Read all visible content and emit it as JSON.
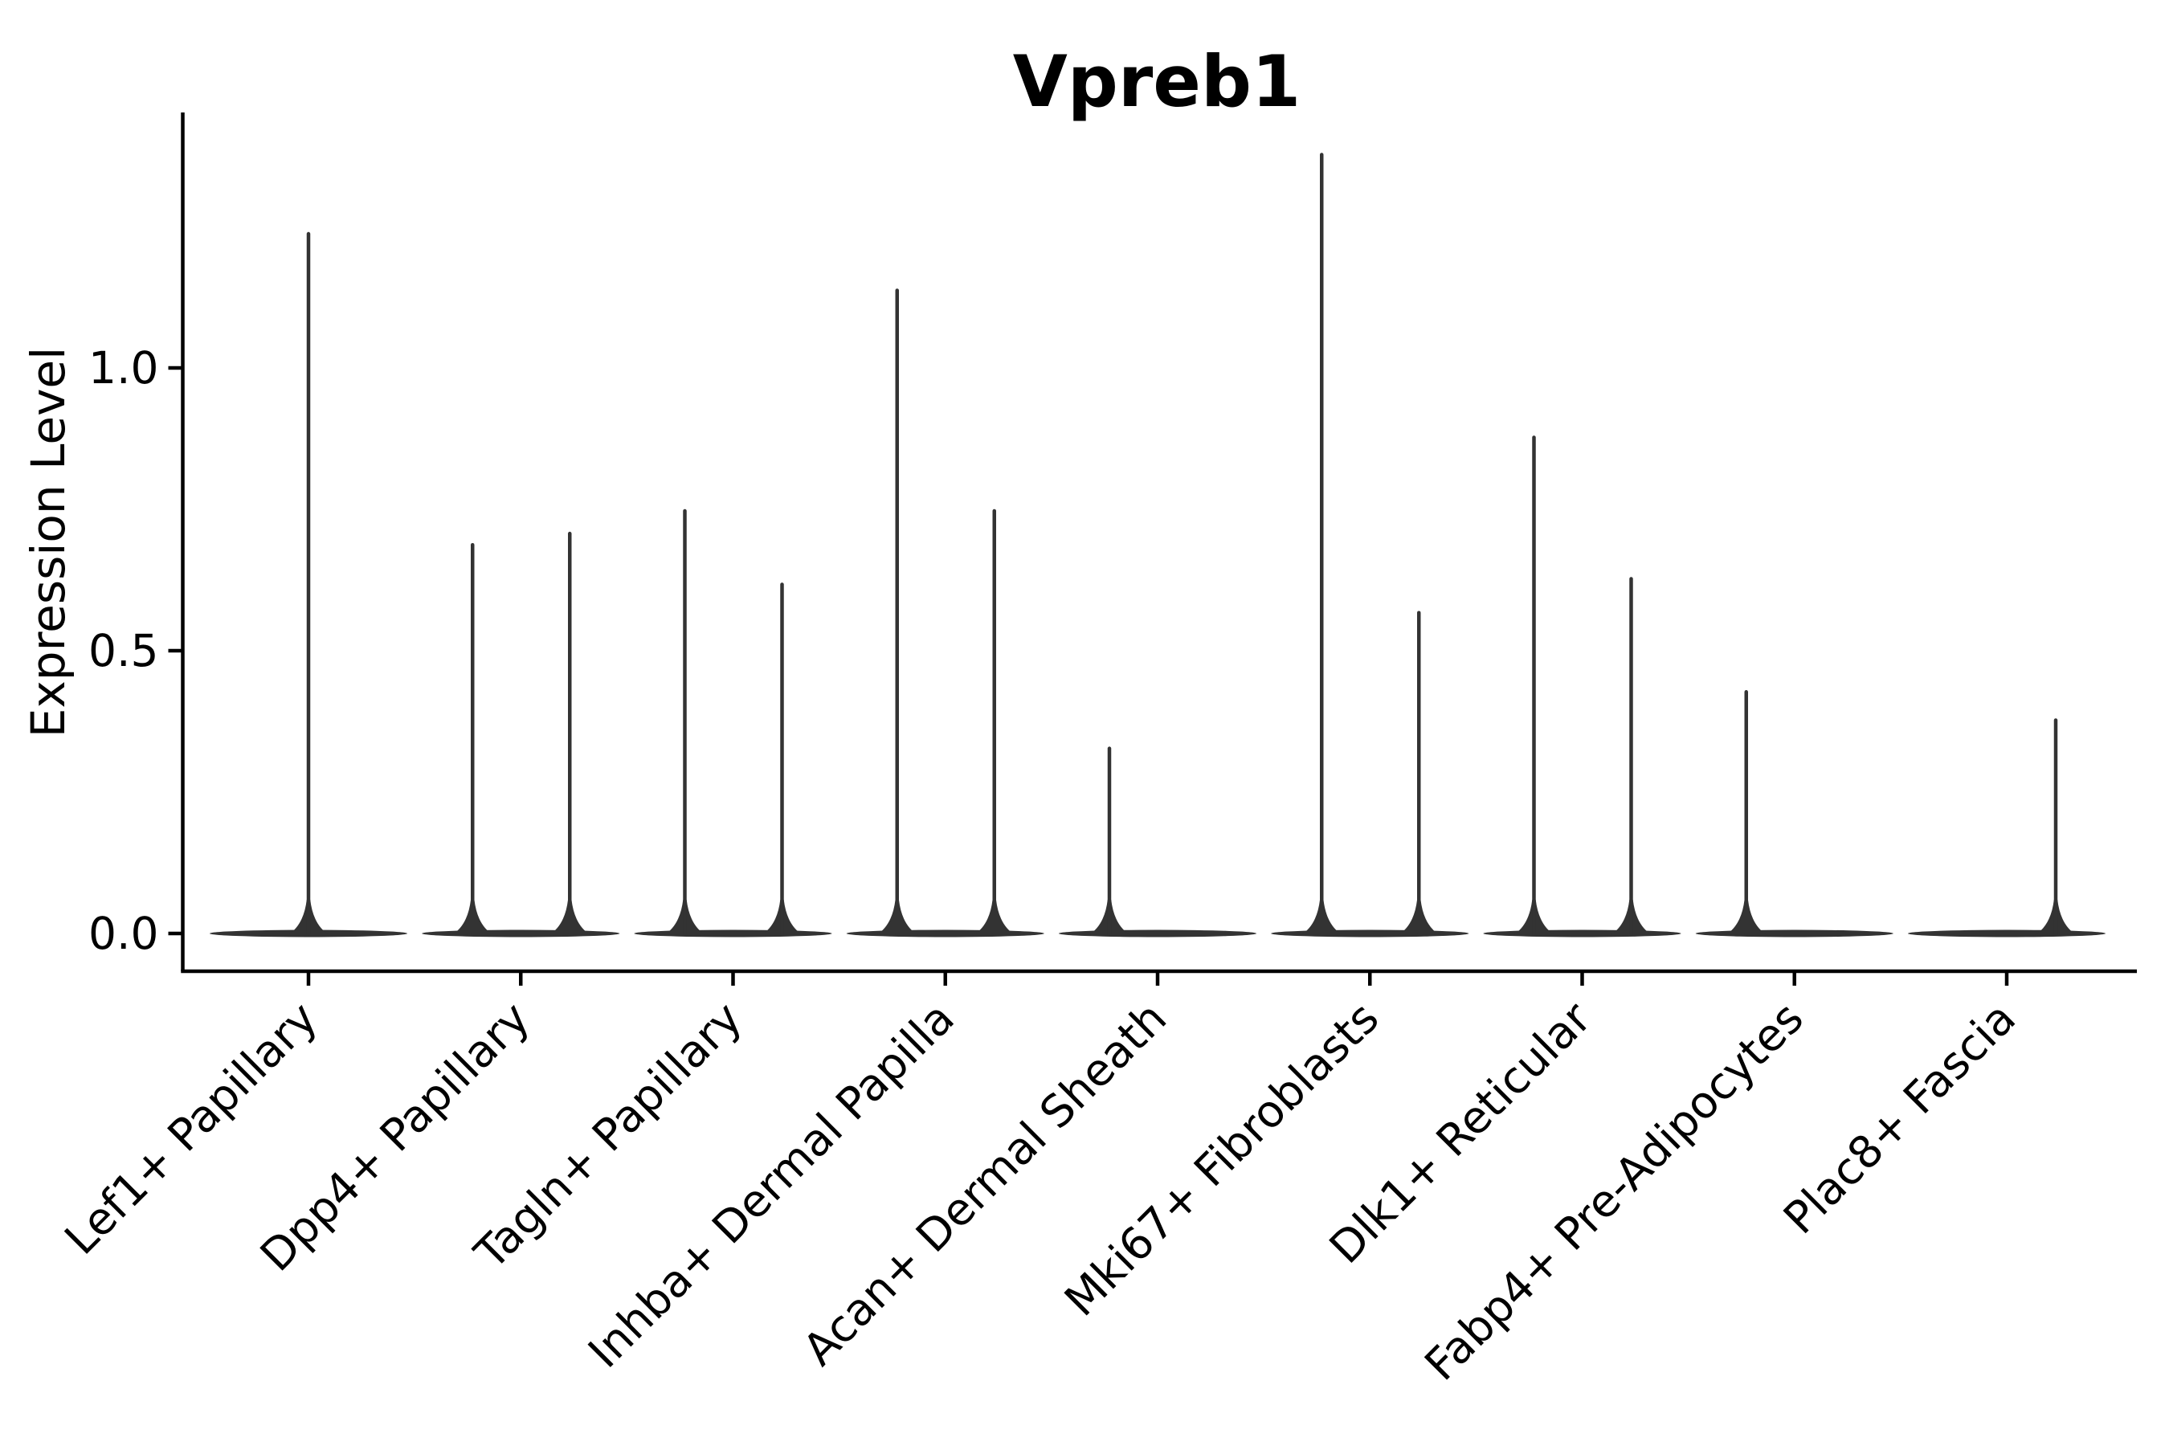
{
  "figure": {
    "title": "Vpreb1",
    "background": "#ffffff"
  },
  "chart_data": {
    "type": "violin",
    "title": "Vpreb1",
    "xlabel": "",
    "ylabel": "Expression Level",
    "categories": [
      "Lef1+ Papillary",
      "Dpp4+ Papillary",
      "Tagln+ Papillary",
      "Inhba+ Dermal Papilla",
      "Acan+ Dermal Sheath",
      "Mki67+ Fibroblasts",
      "Dlk1+ Reticular",
      "Fabp4+ Pre-Adipocytes",
      "Plac8+ Fascia"
    ],
    "violins": [
      {
        "category": "Lef1+ Papillary",
        "spikes": [
          {
            "side": "center",
            "max": 1.24
          }
        ]
      },
      {
        "category": "Dpp4+ Papillary",
        "spikes": [
          {
            "side": "left",
            "max": 0.69
          },
          {
            "side": "right",
            "max": 0.71
          }
        ]
      },
      {
        "category": "Tagln+ Papillary",
        "spikes": [
          {
            "side": "left",
            "max": 0.75
          },
          {
            "side": "right",
            "max": 0.62
          }
        ]
      },
      {
        "category": "Inhba+ Dermal Papilla",
        "spikes": [
          {
            "side": "left",
            "max": 1.14
          },
          {
            "side": "right",
            "max": 0.75
          }
        ]
      },
      {
        "category": "Acan+ Dermal Sheath",
        "spikes": [
          {
            "side": "left",
            "max": 0.33
          }
        ]
      },
      {
        "category": "Mki67+ Fibroblasts",
        "spikes": [
          {
            "side": "left",
            "max": 1.38
          },
          {
            "side": "right",
            "max": 0.57
          }
        ]
      },
      {
        "category": "Dlk1+ Reticular",
        "spikes": [
          {
            "side": "left",
            "max": 0.88
          },
          {
            "side": "right",
            "max": 0.63
          }
        ]
      },
      {
        "category": "Fabp4+ Pre-Adipocytes",
        "spikes": [
          {
            "side": "left",
            "max": 0.43
          }
        ]
      },
      {
        "category": "Plac8+ Fascia",
        "spikes": [
          {
            "side": "right",
            "max": 0.38
          }
        ]
      }
    ],
    "baseline_value": 0.0,
    "ytick_labels": [
      "0.0",
      "0.5",
      "1.0"
    ],
    "ytick_values": [
      0.0,
      0.5,
      1.0
    ],
    "ylim": [
      -0.07,
      1.45
    ],
    "xtick_rotation_deg": 45,
    "grid": false,
    "legend": "none",
    "violin_color": "#333333",
    "axis_color": "#000000"
  }
}
